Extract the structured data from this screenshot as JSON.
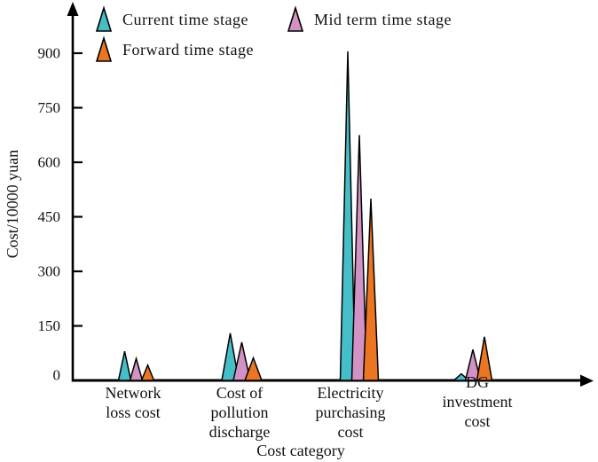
{
  "chart_data": {
    "type": "bar",
    "variant": "triangle-spike-bars",
    "title": "",
    "xlabel": "Cost category",
    "ylabel": "Cost/10000 yuan",
    "ylim": [
      0,
      950
    ],
    "yticks": [
      0,
      150,
      300,
      450,
      600,
      750,
      900
    ],
    "grid": false,
    "legend_position": "top-left, two columns",
    "background": "#ffffff",
    "axis_color": "#000000",
    "categories": [
      "Network loss cost",
      "Cost of pollution discharge",
      "Electricity purchasing cost",
      "DG investment cost"
    ],
    "category_label_lines": [
      [
        "Network",
        "loss cost"
      ],
      [
        "Cost of",
        "pollution",
        "discharge"
      ],
      [
        "Electricity",
        "purchasing",
        "cost"
      ],
      [
        "DG",
        "investment",
        "cost"
      ]
    ],
    "series": [
      {
        "name": "Current time stage",
        "color": "#46BEC8",
        "values": [
          80,
          130,
          905,
          18
        ]
      },
      {
        "name": "Mid term time stage",
        "color": "#D292C4",
        "values": [
          60,
          105,
          675,
          85
        ]
      },
      {
        "name": "Forward time stage",
        "color": "#EC7522",
        "values": [
          42,
          62,
          500,
          120
        ]
      }
    ]
  }
}
